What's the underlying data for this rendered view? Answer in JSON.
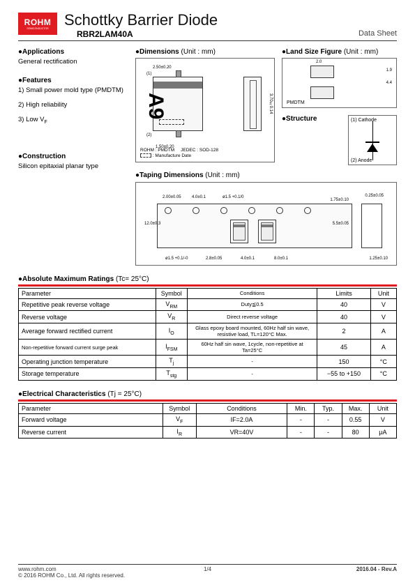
{
  "header": {
    "logo_brand": "ROHM",
    "logo_tag": "SEMICONDUCTOR",
    "title": "Schottky Barrier Diode",
    "part": "RBR2LAM40A",
    "sheet": "Data Sheet"
  },
  "applications": {
    "heading": "●Applications",
    "text": "General rectification"
  },
  "features": {
    "heading": "●Features",
    "items": [
      "1)  Small power mold type (PMDTM)",
      "2)  High reliability",
      "3)  Low V"
    ],
    "items_sub2": "F"
  },
  "construction": {
    "heading": "●Construction",
    "text": "Silicon epitaxial planar type"
  },
  "dimensions": {
    "heading": "●Dimensions",
    "unit": " (Unit : mm)",
    "marking": "A9",
    "pkg_note1": "ROHM : PMDTM",
    "pkg_note2": "JEDEC : SOD-128",
    "pkg_note3": "            : Manufacture Date",
    "top_dim": "2.50±0.20",
    "bot_dim": "1.50±0.20",
    "r0": "0.17 +0.10/-0.05",
    "h": "3.70±0.14",
    "t": "0.95±0.10",
    "pins": {
      "p1": "(1)",
      "p2": "(2)"
    }
  },
  "land": {
    "heading": "●Land Size Figure",
    "unit": " (Unit : mm)",
    "w": "2.0",
    "h1": "1.9",
    "gap": "4.4",
    "pkg": "PMDTM"
  },
  "structure": {
    "heading": "●Structure",
    "cathode": "(1) Cathode",
    "anode": "(2)  Anode"
  },
  "taping": {
    "heading": "●Taping Dimensions",
    "unit": " (Unit : mm)",
    "dims": {
      "d1": "2.00±0.05",
      "d2": "4.0±0.1",
      "d3": "ø1.5 +0.1/0",
      "d4": "1.75±0.10",
      "d5": "0.25±0.05",
      "d6": "12.0±0.3",
      "d7": "5.5±0.05",
      "d8": "ø1.5 +0.1/-0",
      "d9": "2.8±0.05",
      "d10": "4.0±0.1",
      "d11": "8.0±0.1",
      "d12": "1.25±0.10"
    }
  },
  "abs_max": {
    "heading": "●Absolute Maximum Ratings",
    "cond": " (Tc= 25°C)",
    "columns": [
      "Parameter",
      "Symbol",
      "Conditions",
      "Limits",
      "Unit"
    ],
    "rows": [
      {
        "param": "Repetitive peak reverse voltage",
        "sym": "V",
        "sub": "RM",
        "cond": "Duty≦0.5",
        "lim": "40",
        "unit": "V"
      },
      {
        "param": "Reverse voltage",
        "sym": "V",
        "sub": "R",
        "cond": "Direct reverse voltage",
        "lim": "40",
        "unit": "V"
      },
      {
        "param": "Average forward rectified current",
        "sym": "I",
        "sub": "O",
        "cond": "Glass epoxy board mounted, 60Hz half sin wave, resistive load, TL=120°C Max.",
        "lim": "2",
        "unit": "A"
      },
      {
        "param": "Non-repetitive forward current surge peak",
        "sym": "I",
        "sub": "FSM",
        "cond": "60Hz half sin wave, 1cycle, non-repetitive at  Ta=25°C",
        "lim": "45",
        "unit": "A"
      },
      {
        "param": "Operating junction temperature",
        "sym": "T",
        "sub": "j",
        "cond": "-",
        "lim": "150",
        "unit": "°C"
      },
      {
        "param": "Storage temperature",
        "sym": "T",
        "sub": "stg",
        "cond": "-",
        "lim": "−55 to +150",
        "unit": "°C"
      }
    ]
  },
  "elec": {
    "heading": "●Electrical Characteristics",
    "cond": " (Tj = 25°C)",
    "columns": [
      "Parameter",
      "Symbol",
      "Conditions",
      "Min.",
      "Typ.",
      "Max.",
      "Unit"
    ],
    "rows": [
      {
        "param": "Forward voltage",
        "sym": "V",
        "sub": "F",
        "cond": "IF=2.0A",
        "min": "-",
        "typ": "-",
        "max": "0.55",
        "unit": "V"
      },
      {
        "param": "Reverse current",
        "sym": "I",
        "sub": "R",
        "cond": "VR=40V",
        "min": "-",
        "typ": "-",
        "max": "80",
        "unit": "μA"
      }
    ]
  },
  "footer": {
    "url": "www.rohm.com",
    "copyright": "© 2016  ROHM Co., Ltd. All rights reserved.",
    "page": "1/4",
    "rev": "2016.04 -  Rev.A"
  },
  "colors": {
    "brand_red": "#e11b22",
    "text": "#000000",
    "border": "#000000",
    "gray": "#777777"
  }
}
